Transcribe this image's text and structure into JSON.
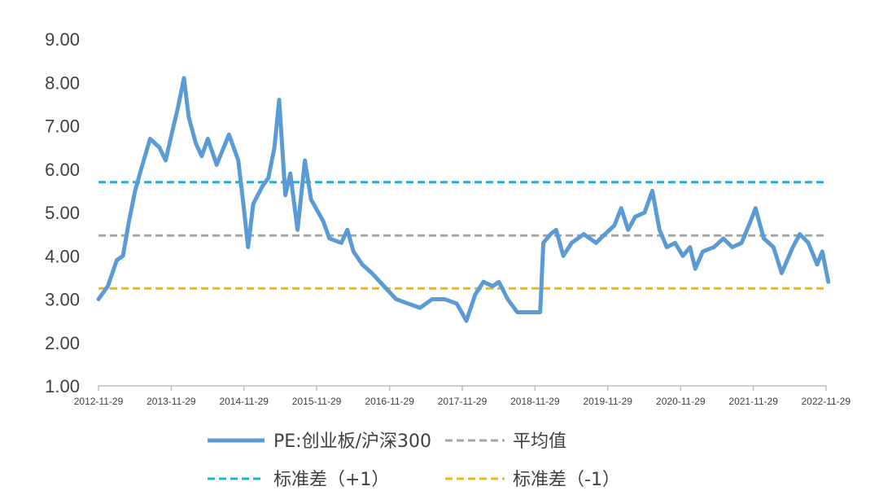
{
  "chart_data": {
    "type": "line",
    "title": "",
    "xlabel": "",
    "ylabel": "",
    "ylim": [
      1.0,
      9.0
    ],
    "y_ticks": [
      "9.00",
      "8.00",
      "7.00",
      "6.00",
      "5.00",
      "4.00",
      "3.00",
      "2.00",
      "1.00"
    ],
    "x_ticks": [
      "2012-11-29",
      "2013-11-29",
      "2014-11-29",
      "2015-11-29",
      "2016-11-29",
      "2017-11-29",
      "2018-11-29",
      "2019-11-29",
      "2020-11-29",
      "2021-11-29",
      "2022-11-29"
    ],
    "grid": false,
    "legend_position": "bottom",
    "series": [
      {
        "name": "PE:创业板/沪深300",
        "color": "#5B9BD5",
        "style": "solid",
        "points": [
          [
            "2012-11-29",
            3.0
          ],
          [
            "2013-01-15",
            3.3
          ],
          [
            "2013-03-01",
            3.9
          ],
          [
            "2013-04-01",
            4.0
          ],
          [
            "2013-05-01",
            4.8
          ],
          [
            "2013-06-01",
            5.5
          ],
          [
            "2013-07-01",
            6.0
          ],
          [
            "2013-08-15",
            6.7
          ],
          [
            "2013-10-01",
            6.5
          ],
          [
            "2013-11-01",
            6.2
          ],
          [
            "2013-12-01",
            6.8
          ],
          [
            "2014-01-01",
            7.4
          ],
          [
            "2014-02-01",
            8.1
          ],
          [
            "2014-02-25",
            7.2
          ],
          [
            "2014-04-01",
            6.6
          ],
          [
            "2014-05-01",
            6.3
          ],
          [
            "2014-06-01",
            6.7
          ],
          [
            "2014-07-15",
            6.1
          ],
          [
            "2014-09-15",
            6.8
          ],
          [
            "2014-11-01",
            6.2
          ],
          [
            "2014-12-01",
            5.0
          ],
          [
            "2014-12-20",
            4.2
          ],
          [
            "2015-01-15",
            5.2
          ],
          [
            "2015-03-01",
            5.6
          ],
          [
            "2015-04-01",
            5.8
          ],
          [
            "2015-05-01",
            6.5
          ],
          [
            "2015-05-25",
            7.6
          ],
          [
            "2015-06-25",
            5.4
          ],
          [
            "2015-07-20",
            5.9
          ],
          [
            "2015-08-25",
            4.6
          ],
          [
            "2015-10-01",
            6.2
          ],
          [
            "2015-11-01",
            5.3
          ],
          [
            "2016-01-01",
            4.8
          ],
          [
            "2016-02-01",
            4.4
          ],
          [
            "2016-04-01",
            4.3
          ],
          [
            "2016-05-01",
            4.6
          ],
          [
            "2016-06-01",
            4.1
          ],
          [
            "2016-07-15",
            3.8
          ],
          [
            "2016-09-01",
            3.6
          ],
          [
            "2016-11-01",
            3.3
          ],
          [
            "2017-01-01",
            3.0
          ],
          [
            "2017-03-01",
            2.9
          ],
          [
            "2017-05-01",
            2.8
          ],
          [
            "2017-07-01",
            3.0
          ],
          [
            "2017-09-01",
            3.0
          ],
          [
            "2017-11-01",
            2.9
          ],
          [
            "2017-12-20",
            2.5
          ],
          [
            "2018-02-01",
            3.1
          ],
          [
            "2018-03-15",
            3.4
          ],
          [
            "2018-05-01",
            3.3
          ],
          [
            "2018-06-01",
            3.4
          ],
          [
            "2018-07-15",
            3.0
          ],
          [
            "2018-09-01",
            2.7
          ],
          [
            "2018-11-01",
            2.7
          ],
          [
            "2018-12-25",
            2.7
          ],
          [
            "2019-01-10",
            4.3
          ],
          [
            "2019-02-15",
            4.5
          ],
          [
            "2019-03-15",
            4.6
          ],
          [
            "2019-04-20",
            4.0
          ],
          [
            "2019-06-01",
            4.3
          ],
          [
            "2019-08-01",
            4.5
          ],
          [
            "2019-10-01",
            4.3
          ],
          [
            "2019-11-15",
            4.5
          ],
          [
            "2020-01-01",
            4.7
          ],
          [
            "2020-02-05",
            5.1
          ],
          [
            "2020-03-10",
            4.6
          ],
          [
            "2020-04-15",
            4.9
          ],
          [
            "2020-06-01",
            5.0
          ],
          [
            "2020-07-10",
            5.5
          ],
          [
            "2020-08-15",
            4.6
          ],
          [
            "2020-09-20",
            4.2
          ],
          [
            "2020-11-01",
            4.3
          ],
          [
            "2020-12-10",
            4.0
          ],
          [
            "2021-01-15",
            4.2
          ],
          [
            "2021-02-10",
            3.7
          ],
          [
            "2021-03-20",
            4.1
          ],
          [
            "2021-05-15",
            4.2
          ],
          [
            "2021-07-01",
            4.4
          ],
          [
            "2021-08-15",
            4.2
          ],
          [
            "2021-10-01",
            4.3
          ],
          [
            "2021-11-15",
            4.8
          ],
          [
            "2021-12-10",
            5.1
          ],
          [
            "2022-01-20",
            4.4
          ],
          [
            "2022-03-10",
            4.2
          ],
          [
            "2022-04-20",
            3.6
          ],
          [
            "2022-06-15",
            4.2
          ],
          [
            "2022-07-20",
            4.5
          ],
          [
            "2022-09-01",
            4.3
          ],
          [
            "2022-10-15",
            3.8
          ],
          [
            "2022-11-10",
            4.1
          ],
          [
            "2022-12-10",
            3.4
          ]
        ]
      },
      {
        "name": "平均值",
        "color": "#A5A5A5",
        "style": "dashed",
        "value": 4.47
      },
      {
        "name": "标准差（+1）",
        "color": "#1AB0E0",
        "style": "dashed",
        "value": 5.7
      },
      {
        "name": "标准差（-1）",
        "color": "#F2B705",
        "style": "dashed",
        "value": 3.25
      }
    ]
  }
}
